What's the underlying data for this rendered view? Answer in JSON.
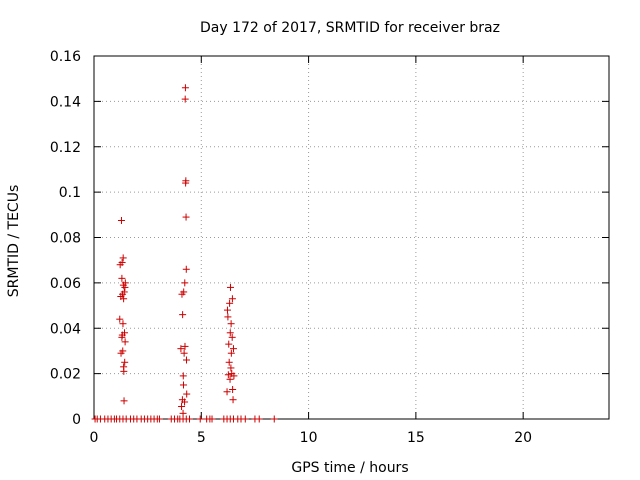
{
  "chart_data": {
    "type": "scatter",
    "title": "Day 172 of 2017, SRMTID for receiver braz",
    "xlabel": "GPS time / hours",
    "ylabel": "SRMTID / TECUs",
    "xlim": [
      0,
      24
    ],
    "ylim": [
      0,
      0.16
    ],
    "grid": true,
    "legend": "none",
    "marker": "+",
    "colors": {
      "marker": "#cc0000",
      "grid": "#9a9a9a",
      "axis": "#000000"
    },
    "x_ticks": [
      0,
      5,
      10,
      15,
      20
    ],
    "x_tick_labels": [
      "0",
      "5",
      "10",
      "15",
      "20"
    ],
    "y_ticks": [
      0,
      0.02,
      0.04,
      0.06,
      0.08,
      0.1,
      0.12,
      0.14,
      0.16
    ],
    "y_tick_labels": [
      "0",
      "0.02",
      "0.04",
      "0.06",
      "0.08",
      "0.1",
      "0.12",
      "0.14",
      "0.16"
    ],
    "series": [
      {
        "name": "SRMTID",
        "points": [
          [
            0.05,
            0
          ],
          [
            0.15,
            0
          ],
          [
            0.3,
            0
          ],
          [
            0.5,
            0
          ],
          [
            0.65,
            0
          ],
          [
            0.8,
            0
          ],
          [
            0.95,
            0
          ],
          [
            1.05,
            0
          ],
          [
            1.2,
            0
          ],
          [
            1.35,
            0
          ],
          [
            1.5,
            0
          ],
          [
            1.7,
            0
          ],
          [
            1.85,
            0
          ],
          [
            2.0,
            0
          ],
          [
            2.2,
            0
          ],
          [
            2.35,
            0
          ],
          [
            2.5,
            0
          ],
          [
            2.65,
            0
          ],
          [
            2.8,
            0
          ],
          [
            2.95,
            0
          ],
          [
            3.05,
            0
          ],
          [
            3.6,
            0
          ],
          [
            3.75,
            0
          ],
          [
            3.9,
            0
          ],
          [
            4.0,
            0
          ],
          [
            4.15,
            0
          ],
          [
            4.3,
            0
          ],
          [
            4.45,
            0
          ],
          [
            4.95,
            0
          ],
          [
            5.25,
            0
          ],
          [
            5.4,
            0
          ],
          [
            5.5,
            0
          ],
          [
            6.05,
            0
          ],
          [
            6.2,
            0
          ],
          [
            6.35,
            0
          ],
          [
            6.5,
            0
          ],
          [
            6.7,
            0
          ],
          [
            6.85,
            0
          ],
          [
            7.05,
            0
          ],
          [
            7.5,
            0
          ],
          [
            7.7,
            0
          ],
          [
            8.4,
            0
          ],
          [
            1.2,
            0.044
          ],
          [
            1.22,
            0.068
          ],
          [
            1.25,
            0.054
          ],
          [
            1.26,
            0.029
          ],
          [
            1.28,
            0.0875
          ],
          [
            1.3,
            0.062
          ],
          [
            1.3,
            0.036
          ],
          [
            1.31,
            0.069
          ],
          [
            1.32,
            0.037
          ],
          [
            1.33,
            0.055
          ],
          [
            1.34,
            0.03
          ],
          [
            1.35,
            0.042
          ],
          [
            1.36,
            0.071
          ],
          [
            1.37,
            0.059
          ],
          [
            1.38,
            0.023
          ],
          [
            1.38,
            0.053
          ],
          [
            1.39,
            0.021
          ],
          [
            1.4,
            0.008
          ],
          [
            1.41,
            0.056
          ],
          [
            1.42,
            0.038
          ],
          [
            1.43,
            0.025
          ],
          [
            1.44,
            0.058
          ],
          [
            1.45,
            0.034
          ],
          [
            1.46,
            0.06
          ],
          [
            4.05,
            0.031
          ],
          [
            4.08,
            0.0055
          ],
          [
            4.1,
            0.055
          ],
          [
            4.12,
            0.0085
          ],
          [
            4.13,
            0.046
          ],
          [
            4.15,
            0.0025
          ],
          [
            4.16,
            0.019
          ],
          [
            4.17,
            0.015
          ],
          [
            4.18,
            0.056
          ],
          [
            4.2,
            0.029
          ],
          [
            4.22,
            0.0075
          ],
          [
            4.23,
            0.06
          ],
          [
            4.24,
            0.032
          ],
          [
            4.25,
            0.141
          ],
          [
            4.26,
            0.146
          ],
          [
            4.27,
            0.104
          ],
          [
            4.28,
            0.105
          ],
          [
            4.29,
            0.089
          ],
          [
            4.3,
            0.066
          ],
          [
            4.31,
            0.026
          ],
          [
            4.32,
            0.011
          ],
          [
            6.2,
            0.012
          ],
          [
            6.22,
            0.048
          ],
          [
            6.24,
            0.045
          ],
          [
            6.26,
            0.0195
          ],
          [
            6.28,
            0.033
          ],
          [
            6.3,
            0.025
          ],
          [
            6.32,
            0.051
          ],
          [
            6.34,
            0.0175
          ],
          [
            6.35,
            0.038
          ],
          [
            6.36,
            0.058
          ],
          [
            6.38,
            0.0225
          ],
          [
            6.39,
            0.042
          ],
          [
            6.4,
            0.029
          ],
          [
            6.42,
            0.02
          ],
          [
            6.44,
            0.036
          ],
          [
            6.45,
            0.053
          ],
          [
            6.46,
            0.013
          ],
          [
            6.48,
            0.0085
          ],
          [
            6.5,
            0.031
          ],
          [
            6.52,
            0.019
          ]
        ]
      }
    ]
  }
}
